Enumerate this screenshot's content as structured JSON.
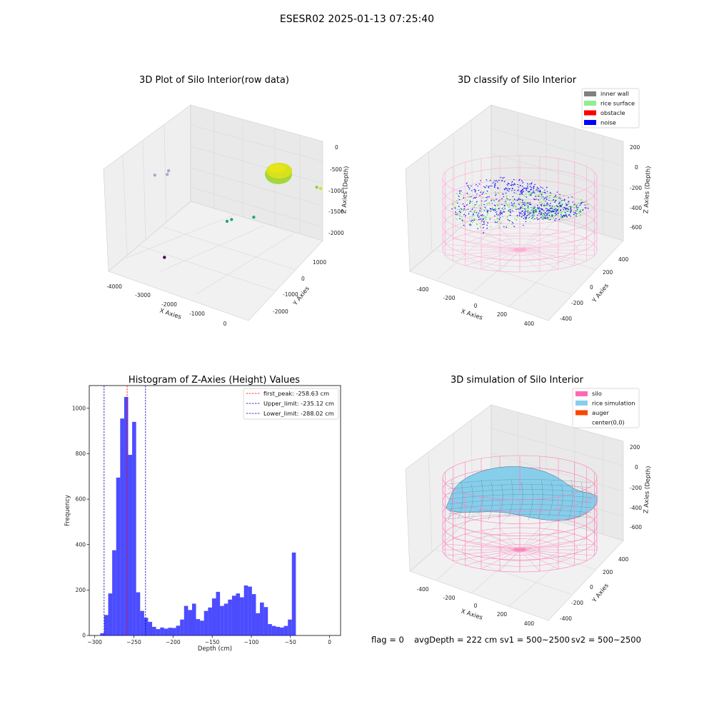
{
  "figure": {
    "suptitle": "ESESR02 2025-01-13 07:25:40",
    "footer": {
      "flag": "flag = 0",
      "avg_depth": "avgDepth = 222 cm",
      "sv1": "sv1 = 500~2500",
      "sv2": "sv2 = 500~2500"
    }
  },
  "colors": {
    "histogram_bar": "#0000ff",
    "first_peak_line": "#ff0000",
    "limit_line": "#0000aa",
    "inner_wall": "#808080",
    "rice_surface": "#90ee90",
    "obstacle": "#ff0000",
    "noise": "#0000ff",
    "silo": "#ff69b4",
    "rice_simulation": "#87ceeb",
    "auger": "#ff4500",
    "silo_wire": "#ff7ab8",
    "raw_cluster": "#d8e21a"
  },
  "chart_data": [
    {
      "type": "scatter",
      "kind": "3d",
      "title": "3D Plot of Silo Interior(row data)",
      "xlabel": "X Axies",
      "ylabel": "Y Axies",
      "zlabel": "Z Axies (Depth)",
      "x_ticks": [
        "-4000",
        "-3000",
        "-2000",
        "-1000",
        "0"
      ],
      "y_ticks": [
        "-2000",
        "-1000",
        "0",
        "1000"
      ],
      "z_ticks": [
        "0",
        "-500",
        "-1000",
        "-1500",
        "-2000"
      ],
      "xlim": [
        -4300,
        300
      ],
      "ylim": [
        -2500,
        1500
      ],
      "zlim": [
        -2300,
        100
      ],
      "points": [
        {
          "x": 200,
          "y": 1000,
          "z": -600,
          "color": "#d8e21a"
        },
        {
          "x": 50,
          "y": 1100,
          "z": -650,
          "color": "#8fd14f"
        },
        {
          "x": -2000,
          "y": 700,
          "z": -1800,
          "color": "#21a685"
        },
        {
          "x": -2100,
          "y": 650,
          "z": -1850,
          "color": "#21a685"
        },
        {
          "x": -1500,
          "y": 900,
          "z": -1700,
          "color": "#21a685"
        },
        {
          "x": -3800,
          "y": 1000,
          "z": -1300,
          "color": "#aba6cc"
        },
        {
          "x": -4000,
          "y": 600,
          "z": -1200,
          "color": "#aba6cc"
        },
        {
          "x": -3700,
          "y": 800,
          "z": -1100,
          "color": "#aba6cc"
        },
        {
          "x": -3100,
          "y": -1200,
          "z": -2200,
          "color": "#440154"
        }
      ]
    },
    {
      "type": "scatter",
      "kind": "3d",
      "title": "3D classify of Silo Interior",
      "xlabel": "X Axies",
      "ylabel": "Y Axies",
      "zlabel": "Z Axies (Depth)",
      "x_ticks": [
        "-400",
        "-200",
        "0",
        "200",
        "400"
      ],
      "y_ticks": [
        "-400",
        "-200",
        "0",
        "200",
        "400"
      ],
      "z_ticks": [
        "200",
        "0",
        "-200",
        "-400",
        "-600"
      ],
      "xlim": [
        -500,
        500
      ],
      "ylim": [
        -500,
        500
      ],
      "zlim": [
        -750,
        250
      ],
      "legend": {
        "placement": "top-right",
        "entries": [
          {
            "label": "inner wall",
            "color": "#808080"
          },
          {
            "label": "rice surface",
            "color": "#90ee90"
          },
          {
            "label": "obstacle",
            "color": "#ff0000"
          },
          {
            "label": "noise",
            "color": "#0000ff"
          }
        ]
      }
    },
    {
      "type": "bar",
      "title": "Histogram of Z-Axies (Height) Values",
      "xlabel": "Depth (cm)",
      "ylabel": "Frequency",
      "xlim": [
        -307,
        14
      ],
      "ylim": [
        0,
        1100
      ],
      "x_ticks": [
        -300,
        -250,
        -200,
        -150,
        -100,
        -50,
        0
      ],
      "y_ticks": [
        0,
        200,
        400,
        600,
        800,
        1000
      ],
      "bin_start": -293,
      "bin_width": 5.1,
      "values": [
        10,
        90,
        185,
        375,
        695,
        955,
        1050,
        795,
        940,
        190,
        108,
        78,
        60,
        38,
        28,
        35,
        30,
        34,
        33,
        43,
        70,
        130,
        112,
        140,
        72,
        65,
        108,
        123,
        163,
        192,
        130,
        140,
        158,
        175,
        185,
        168,
        220,
        215,
        182,
        98,
        145,
        125,
        50,
        42,
        38,
        35,
        42,
        70,
        365
      ],
      "grid": false,
      "lines": [
        {
          "label": "first_peak: -258.63 cm",
          "x": -258.63,
          "color": "#ff0000"
        },
        {
          "label": "Upper_limit: -235.12 cm",
          "x": -235.12,
          "color": "#0000aa"
        },
        {
          "label": "Lower_limit: -288.02 cm",
          "x": -288.02,
          "color": "#0000aa"
        }
      ],
      "legend": {
        "placement": "top-right"
      }
    },
    {
      "type": "area",
      "kind": "3d-surface",
      "title": "3D simulation of Silo Interior",
      "xlabel": "X Axies",
      "ylabel": "Y Axies",
      "zlabel": "Z Axies (Depth)",
      "x_ticks": [
        "-400",
        "-200",
        "0",
        "200",
        "400"
      ],
      "y_ticks": [
        "-400",
        "-200",
        "0",
        "200",
        "400"
      ],
      "z_ticks": [
        "200",
        "0",
        "-200",
        "-400",
        "-600"
      ],
      "xlim": [
        -500,
        500
      ],
      "ylim": [
        -500,
        500
      ],
      "zlim": [
        -750,
        250
      ],
      "legend": {
        "placement": "top-right",
        "entries": [
          {
            "label": "silo",
            "color": "#ff69b4"
          },
          {
            "label": "rice simulation",
            "color": "#87ceeb"
          },
          {
            "label": "auger",
            "color": "#ff4500"
          },
          {
            "label": "center(0,0)",
            "color": "#ffffff"
          }
        ]
      }
    }
  ]
}
